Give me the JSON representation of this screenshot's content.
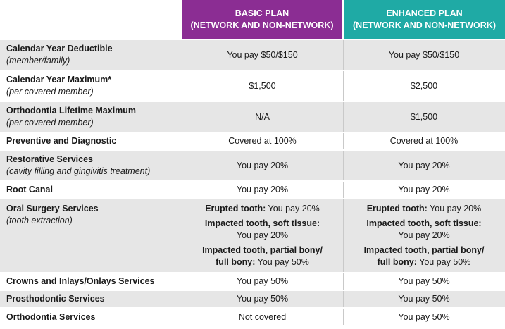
{
  "header": {
    "basic_line1": "BASIC PLAN",
    "basic_line2": "(NETWORK AND NON-NETWORK)",
    "enhanced_line1": "ENHANCED PLAN",
    "enhanced_line2": "(NETWORK AND NON-NETWORK)"
  },
  "rows": [
    {
      "title": "Calendar Year Deductible",
      "subtitle": "(member/family)",
      "basic": "You pay $50/$150",
      "enhanced": "You pay $50/$150"
    },
    {
      "title": "Calendar Year Maximum*",
      "subtitle": "(per covered member)",
      "basic": "$1,500",
      "enhanced": "$2,500"
    },
    {
      "title": "Orthodontia Lifetime Maximum",
      "subtitle": "(per covered member)",
      "basic": "N/A",
      "enhanced": "$1,500"
    },
    {
      "title": "Preventive and Diagnostic",
      "basic": "Covered at 100%",
      "enhanced": "Covered at 100%"
    },
    {
      "title": "Restorative Services",
      "subtitle": "(cavity filling and gingivitis treatment)",
      "basic": "You pay 20%",
      "enhanced": "You pay 20%"
    },
    {
      "title": "Root Canal",
      "basic": "You pay 20%",
      "enhanced": "You pay 20%"
    },
    {
      "title": "Oral Surgery Services",
      "subtitle": "(tooth extraction)",
      "basic": {
        "erupted_label": "Erupted tooth:",
        "erupted_value": " You pay 20%",
        "impacted_soft_label": "Impacted tooth, soft tissue:",
        "impacted_soft_value": "You pay 20%",
        "impacted_bony_label1": "Impacted tooth, partial bony/",
        "impacted_bony_label2": "full bony:",
        "impacted_bony_value": " You pay 50%"
      },
      "enhanced": {
        "erupted_label": "Erupted tooth:",
        "erupted_value": " You pay 20%",
        "impacted_soft_label": "Impacted tooth, soft tissue:",
        "impacted_soft_value": "You pay 20%",
        "impacted_bony_label1": "Impacted tooth, partial bony/",
        "impacted_bony_label2": "full bony:",
        "impacted_bony_value": " You pay 50%"
      }
    },
    {
      "title": "Crowns and Inlays/Onlays Services",
      "basic": "You pay 50%",
      "enhanced": "You pay 50%"
    },
    {
      "title": "Prosthodontic Services",
      "basic": "You pay 50%",
      "enhanced": "You pay 50%"
    },
    {
      "title": "Orthodontia Services",
      "basic": "Not covered",
      "enhanced": "You pay 50%"
    }
  ]
}
